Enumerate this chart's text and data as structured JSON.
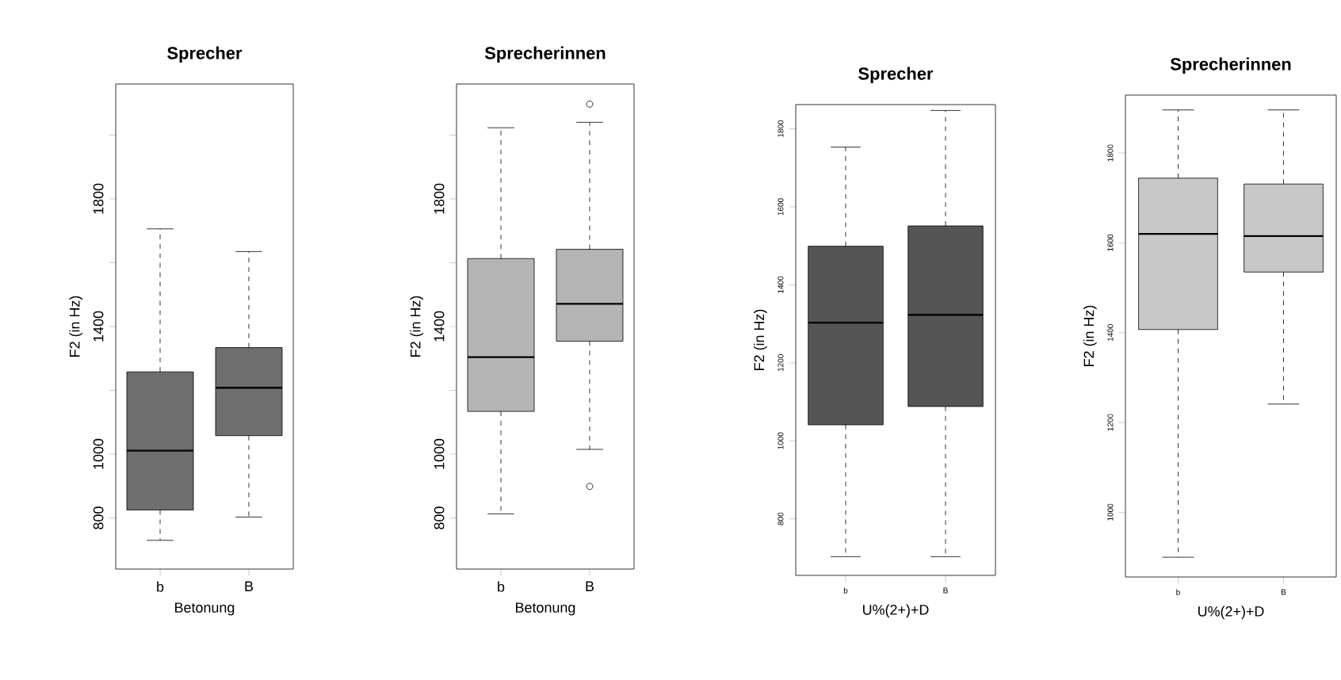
{
  "chart_data": [
    {
      "type": "box",
      "title": "Sprecher",
      "xlabel": "Betonung",
      "ylabel": "F2 (in Hz)",
      "categories": [
        "b",
        "B"
      ],
      "color": "#6e6e6e",
      "line_style": "dashed",
      "grid": false,
      "ylim": [
        640,
        2160
      ],
      "yticks": [
        800,
        1000,
        {
          "value": 1200,
          "label": null
        },
        1400,
        {
          "value": 1600,
          "label": null
        },
        1800,
        {
          "value": 2000,
          "label": null
        }
      ],
      "boxes": [
        {
          "low": 730,
          "q1": 825,
          "median": 1011,
          "q3": 1258,
          "high": 1706
        },
        {
          "low": 803,
          "q1": 1058,
          "median": 1208,
          "q3": 1334,
          "high": 1635
        }
      ]
    },
    {
      "type": "box",
      "title": "Sprecherinnen",
      "xlabel": "Betonung",
      "ylabel": "F2 (in Hz)",
      "categories": [
        "b",
        "B"
      ],
      "color": "#b4b4b4",
      "line_style": "dashed",
      "grid": false,
      "ylim": [
        640,
        2160
      ],
      "yticks": [
        800,
        1000,
        {
          "value": 1200,
          "label": null
        },
        1400,
        {
          "value": 1600,
          "label": null
        },
        1800,
        {
          "value": 2000,
          "label": null
        }
      ],
      "boxes": [
        {
          "low": 813,
          "q1": 1134,
          "median": 1304,
          "q3": 1613,
          "high": 2023
        },
        {
          "low": 1015,
          "q1": 1354,
          "median": 1471,
          "q3": 1642,
          "high": 2040,
          "outliers": [
            899,
            2097
          ]
        }
      ]
    },
    {
      "type": "box",
      "title": "Sprecher",
      "xlabel": "U%(2+)+D",
      "ylabel": "F2 (in Hz)",
      "categories": [
        "b",
        "B"
      ],
      "color": "#555555",
      "line_style": "dashed",
      "grid": false,
      "ylim": [
        655,
        1862
      ],
      "yticks": [
        800,
        1000,
        1200,
        1400,
        1600,
        1800
      ],
      "boxes": [
        {
          "low": 703,
          "q1": 1041,
          "median": 1303,
          "q3": 1499,
          "high": 1753
        },
        {
          "low": 703,
          "q1": 1088,
          "median": 1323,
          "q3": 1551,
          "high": 1847
        }
      ]
    },
    {
      "type": "box",
      "title": "Sprecherinnen",
      "xlabel": "U%(2+)+D",
      "ylabel": "F2 (in Hz)",
      "categories": [
        "b",
        "B"
      ],
      "color": "#c8c8c8",
      "line_style": "dashed",
      "grid": false,
      "ylim": [
        856,
        1929
      ],
      "yticks": [
        1000,
        1200,
        1400,
        1600,
        1800
      ],
      "boxes": [
        {
          "low": 900,
          "q1": 1407,
          "median": 1620,
          "q3": 1744,
          "high": 1896
        },
        {
          "low": 1241,
          "q1": 1535,
          "median": 1615,
          "q3": 1731,
          "high": 1896
        }
      ]
    }
  ]
}
